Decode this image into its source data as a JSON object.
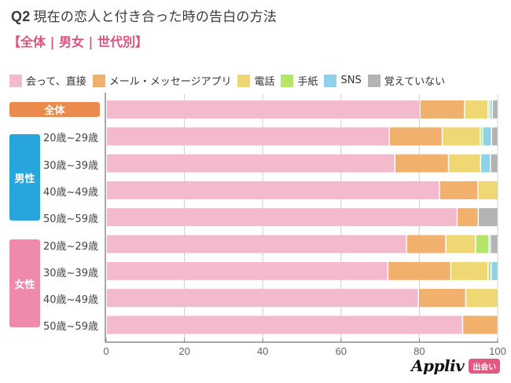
{
  "header": {
    "q_label": "Q2",
    "title": "現在の恋人と付き合った時の告白の方法",
    "subtitle": "【全体 | 男女 | 世代別】"
  },
  "groups": {
    "total": "全体",
    "male": "男性",
    "female": "女性"
  },
  "colors": {
    "total": "#ea8a4d",
    "male": "#28a6dc",
    "female": "#ee8aab"
  },
  "footer": {
    "logo_text": "Appliv",
    "logo_badge": "出会い"
  },
  "chart_data": {
    "type": "bar",
    "orientation": "horizontal",
    "stacked": true,
    "title": "Q2 現在の恋人と付き合った時の告白の方法",
    "subtitle": "【全体 | 男女 | 世代別】",
    "xlabel": "",
    "ylabel": "",
    "xlim": [
      0,
      100
    ],
    "xticks": [
      0,
      20,
      40,
      60,
      80,
      100
    ],
    "grid": true,
    "legend_position": "top",
    "categories": [
      "全体",
      "20歳~29歳",
      "30歳~39歳",
      "40歳~49歳",
      "50歳~59歳",
      "20歳~29歳",
      "30歳~39歳",
      "40歳~49歳",
      "50歳~59歳"
    ],
    "category_groups": [
      "全体",
      "男性",
      "男性",
      "男性",
      "男性",
      "女性",
      "女性",
      "女性",
      "女性"
    ],
    "series": [
      {
        "name": "会って、直接",
        "color": "#f3b9cd",
        "values": [
          80.1,
          72.3,
          73.7,
          85.1,
          89.6,
          76.7,
          71.9,
          79.7,
          91.0
        ]
      },
      {
        "name": "メール・メッセージアプリ",
        "color": "#f1b06c",
        "values": [
          11.4,
          13.5,
          13.7,
          9.8,
          5.4,
          10.0,
          16.1,
          12.1,
          9.0
        ]
      },
      {
        "name": "電話",
        "color": "#efd774",
        "values": [
          6.0,
          9.7,
          8.2,
          5.1,
          0,
          7.6,
          9.5,
          8.2,
          0
        ]
      },
      {
        "name": "手紙",
        "color": "#b5e66a",
        "values": [
          0.5,
          0.6,
          0,
          0,
          0,
          3.4,
          0.8,
          0,
          0
        ]
      },
      {
        "name": "SNS",
        "color": "#8dd1ea",
        "values": [
          0.6,
          2.3,
          2.5,
          0,
          0,
          0.4,
          1.7,
          0,
          0
        ]
      },
      {
        "name": "覚えていない",
        "color": "#b3b3b3",
        "values": [
          1.4,
          1.6,
          1.9,
          0,
          5.0,
          1.9,
          0,
          0,
          0
        ]
      }
    ]
  }
}
